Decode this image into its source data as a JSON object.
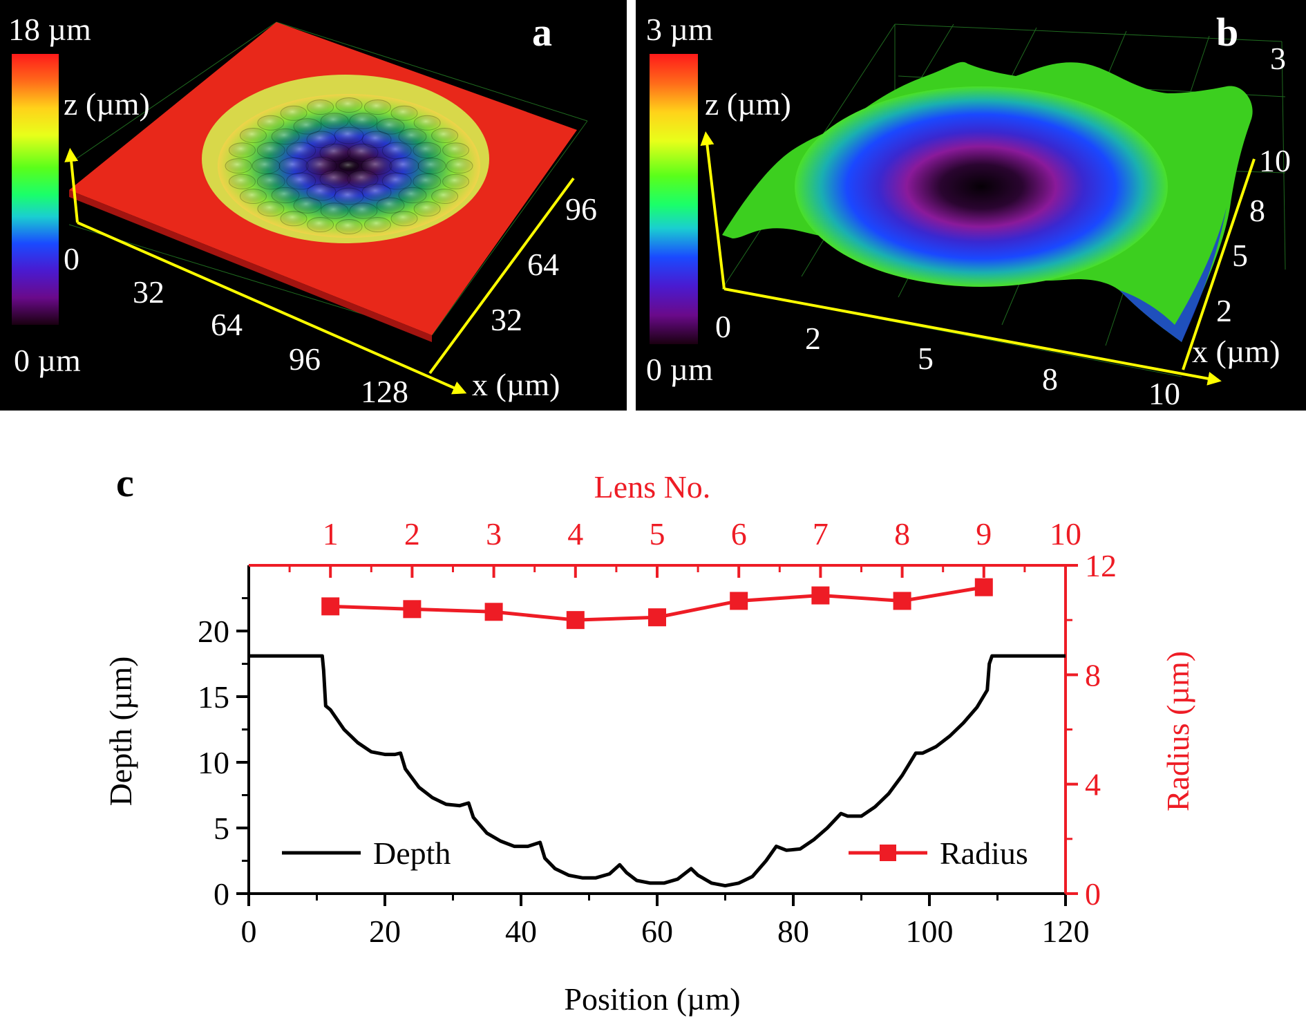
{
  "panel_a": {
    "label": "a",
    "scale_max": "18 µm",
    "scale_min": "0 µm",
    "z_label": "z (µm)",
    "z_tick": "0",
    "x_label": "x (µm)",
    "x_ticks": [
      "32",
      "64",
      "96",
      "128"
    ],
    "y_ticks": [
      "32",
      "64",
      "96"
    ]
  },
  "panel_b": {
    "label": "b",
    "scale_max": "3 µm",
    "scale_min": "0 µm",
    "z_label": "z (µm)",
    "z_tick_top": "3",
    "origin_tick": "0",
    "x_label": "x (µm)",
    "x_ticks": [
      "2",
      "5",
      "8",
      "10"
    ],
    "y_ticks": [
      "2",
      "5",
      "8",
      "10"
    ]
  },
  "panel_c": {
    "label": "c",
    "top_axis_title": "Lens No.",
    "top_ticks": [
      "1",
      "2",
      "3",
      "4",
      "5",
      "6",
      "7",
      "8",
      "9",
      "10"
    ],
    "xlabel": "Position (µm)",
    "ylabel_left": "Depth (µm)",
    "ylabel_right": "Radius (µm)",
    "x_ticks": [
      "0",
      "20",
      "40",
      "60",
      "80",
      "100",
      "120"
    ],
    "y_left_ticks": [
      "0",
      "5",
      "10",
      "15",
      "20"
    ],
    "y_right_ticks": [
      "0",
      "4",
      "8",
      "12"
    ],
    "legend_depth": "Depth",
    "legend_radius": "Radius"
  },
  "colors": {
    "depth_line": "#000000",
    "radius_line": "#ee1c25",
    "right_axis": "#ee1c25",
    "height_map_top": "#e8281a",
    "axis_arrow": "#ffff00"
  },
  "chart_data": {
    "type": "line",
    "title": "",
    "xlabel": "Position (µm)",
    "xlim": [
      0,
      120
    ],
    "series": [
      {
        "name": "Depth",
        "axis": "left",
        "ylim": [
          0,
          25
        ],
        "x": [
          0,
          10.8,
          11,
          11.3,
          12,
          14,
          16,
          18,
          20,
          21.5,
          22.3,
          23,
          25,
          27,
          29,
          31,
          32.3,
          33,
          35,
          37,
          39,
          41,
          42.8,
          43.5,
          45,
          47,
          49,
          51,
          53,
          54.5,
          55.5,
          57,
          59,
          61,
          63,
          65,
          66,
          68,
          70,
          72,
          74,
          76,
          77.5,
          79,
          81,
          83,
          85,
          87,
          88,
          90,
          92,
          94,
          96,
          98,
          99,
          101,
          103,
          105,
          107,
          108.5,
          108.8,
          109.2,
          110,
          120
        ],
        "y": [
          18.1,
          18.1,
          17.0,
          14.3,
          14.0,
          12.5,
          11.5,
          10.8,
          10.6,
          10.6,
          10.7,
          9.5,
          8.1,
          7.3,
          6.8,
          6.7,
          6.9,
          5.8,
          4.6,
          4.0,
          3.6,
          3.6,
          3.9,
          2.7,
          1.9,
          1.4,
          1.2,
          1.2,
          1.5,
          2.2,
          1.6,
          1.0,
          0.8,
          0.8,
          1.1,
          1.9,
          1.4,
          0.8,
          0.6,
          0.8,
          1.3,
          2.5,
          3.6,
          3.3,
          3.4,
          4.1,
          5.0,
          6.1,
          5.9,
          5.9,
          6.6,
          7.6,
          9.0,
          10.7,
          10.7,
          11.2,
          12.0,
          13.0,
          14.2,
          15.5,
          17.5,
          18.1,
          18.1,
          18.1
        ]
      },
      {
        "name": "Radius",
        "axis": "right",
        "ylim": [
          0,
          12
        ],
        "x": [
          12,
          24,
          36,
          48,
          60,
          72,
          84,
          96,
          108
        ],
        "lens_no": [
          1,
          2,
          3,
          4,
          5,
          6,
          7,
          8,
          9
        ],
        "y": [
          10.5,
          10.4,
          10.3,
          10.0,
          10.1,
          10.7,
          10.9,
          10.7,
          11.2
        ]
      }
    ],
    "legend": "bottom",
    "grid": false
  }
}
